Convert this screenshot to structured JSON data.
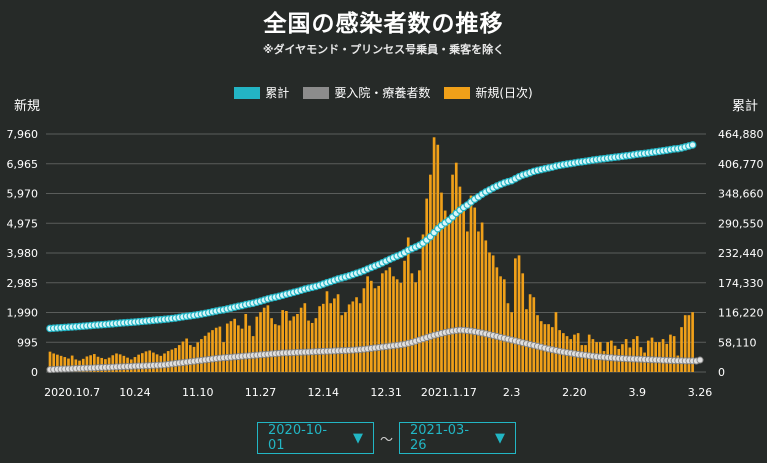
{
  "title": "全国の感染者数の推移",
  "subtitle": "※ダイヤモンド・プリンセス号乗員・乗客を除く",
  "colors": {
    "background": "#262a28",
    "cumulative": "#23b4c4",
    "hospitalized": "#8c8c8c",
    "new": "#f0a019",
    "grid": "#5a5d5b",
    "accent": "#22b6c4"
  },
  "range": {
    "start": "2020-10-01",
    "end": "2021-03-26",
    "separator": "〜",
    "arrow": "▼"
  },
  "chart_data": {
    "type": "bar",
    "title": "全国の感染者数の推移",
    "subtitle": "※ダイヤモンド・プリンセス号乗員・乗客を除く",
    "ylabel_left": "新規",
    "ylabel_right": "累計",
    "ylim_left": [
      0,
      7960
    ],
    "ylim_right": [
      0,
      464880
    ],
    "left_ticks": [
      "0",
      "995",
      "1,990",
      "2,985",
      "3,980",
      "4,975",
      "5,970",
      "6,965",
      "7,960"
    ],
    "right_ticks": [
      "0",
      "58,110",
      "116,220",
      "174,330",
      "232,440",
      "290,550",
      "348,660",
      "406,770",
      "464,880"
    ],
    "x_tick_labels": [
      "2020.10.7",
      "10.24",
      "11.10",
      "11.27",
      "12.14",
      "12.31",
      "2021.1.17",
      "2.3",
      "2.20",
      "3.9",
      "3.26"
    ],
    "x_tick_index": [
      6,
      23,
      40,
      57,
      74,
      91,
      108,
      125,
      142,
      159,
      176
    ],
    "x_count": 177,
    "legend": [
      "累計",
      "要入院・療養者数",
      "新規(日次)"
    ],
    "legend_position": "top-center",
    "series": [
      {
        "name": "新規(日次)",
        "type": "bar",
        "axis": "left",
        "values": [
          680,
          620,
          580,
          540,
          500,
          450,
          550,
          420,
          380,
          440,
          520,
          560,
          600,
          510,
          470,
          430,
          480,
          560,
          620,
          590,
          540,
          480,
          420,
          500,
          580,
          630,
          690,
          720,
          650,
          590,
          540,
          620,
          700,
          750,
          800,
          900,
          1020,
          1120,
          900,
          840,
          990,
          1100,
          1210,
          1320,
          1400,
          1480,
          1520,
          1000,
          1620,
          1700,
          1780,
          1560,
          1450,
          1940,
          1550,
          1200,
          1850,
          2000,
          2150,
          2230,
          1800,
          1600,
          1560,
          2070,
          2040,
          1720,
          1860,
          1940,
          2150,
          2300,
          1720,
          1640,
          1800,
          2200,
          2280,
          2700,
          2300,
          2460,
          2600,
          1900,
          2000,
          2260,
          2360,
          2500,
          2300,
          2800,
          3200,
          3050,
          2800,
          2880,
          3300,
          3400,
          3500,
          3200,
          3100,
          2980,
          3720,
          4500,
          3300,
          3000,
          3400,
          4600,
          5800,
          6600,
          7850,
          7600,
          6000,
          5400,
          5000,
          6600,
          7000,
          6200,
          5400,
          4700,
          5900,
          5500,
          4700,
          5000,
          4400,
          4000,
          3900,
          3500,
          3200,
          3100,
          2300,
          2000,
          3800,
          3900,
          3300,
          2100,
          2600,
          2500,
          1900,
          1700,
          1600,
          1600,
          1500,
          2000,
          1400,
          1300,
          1200,
          1100,
          1250,
          1300,
          900,
          900,
          1250,
          1100,
          1000,
          1000,
          700,
          1000,
          1050,
          880,
          770,
          930,
          1100,
          820,
          1100,
          1200,
          830,
          650,
          1050,
          1150,
          1000,
          1000,
          1100,
          940,
          1250,
          1200,
          550,
          1500,
          1900,
          1900,
          2000
        ]
      },
      {
        "name": "累計",
        "type": "line",
        "axis": "right",
        "values": [
          85000,
          85500,
          86000,
          86500,
          87000,
          87500,
          88000,
          88500,
          89000,
          89600,
          90100,
          90800,
          91400,
          92000,
          92500,
          93000,
          93600,
          94200,
          94900,
          95500,
          96100,
          96600,
          97000,
          97600,
          98200,
          98900,
          99600,
          100300,
          101000,
          101600,
          102200,
          102900,
          103600,
          104500,
          105400,
          106500,
          107700,
          108800,
          109700,
          110700,
          111900,
          113100,
          114500,
          116000,
          117500,
          119000,
          120500,
          121500,
          123200,
          124900,
          126700,
          128300,
          129700,
          131700,
          133200,
          134400,
          136300,
          138300,
          140500,
          142800,
          144600,
          146200,
          147800,
          149900,
          152000,
          153700,
          155600,
          157500,
          159700,
          162000,
          163700,
          165400,
          167200,
          169400,
          171700,
          174400,
          176700,
          179200,
          181800,
          183700,
          185700,
          188000,
          190400,
          192900,
          195200,
          198000,
          201200,
          204300,
          207100,
          210000,
          213300,
          216700,
          220200,
          223400,
          226500,
          229500,
          233200,
          237700,
          241000,
          244000,
          247400,
          252000,
          257800,
          264400,
          272300,
          279900,
          285900,
          291300,
          296300,
          302900,
          309900,
          316100,
          321500,
          326200,
          332100,
          337600,
          342300,
          347300,
          351700,
          355700,
          359600,
          363100,
          366300,
          369400,
          371700,
          373700,
          377500,
          381400,
          384700,
          386800,
          389400,
          391900,
          393800,
          395500,
          397100,
          398700,
          400200,
          402200,
          403600,
          404900,
          406100,
          407200,
          408400,
          409700,
          410600,
          411500,
          412800,
          413900,
          414900,
          415900,
          416600,
          417600,
          418600,
          419500,
          420300,
          421200,
          422300,
          423100,
          424200,
          425400,
          426200,
          426900,
          427900,
          429100,
          430100,
          431100,
          432200,
          433200,
          434500,
          435700,
          436200,
          437700,
          439600,
          441500,
          443500
        ]
      },
      {
        "name": "要入院・療養者数",
        "type": "line",
        "axis": "left",
        "values": [
          80,
          85,
          90,
          95,
          100,
          105,
          110,
          115,
          120,
          125,
          130,
          135,
          140,
          145,
          150,
          155,
          160,
          165,
          170,
          175,
          180,
          185,
          190,
          195,
          200,
          205,
          210,
          215,
          220,
          225,
          230,
          240,
          255,
          270,
          285,
          300,
          315,
          330,
          345,
          360,
          375,
          390,
          405,
          420,
          435,
          450,
          465,
          475,
          485,
          495,
          505,
          515,
          525,
          535,
          545,
          555,
          565,
          575,
          585,
          595,
          605,
          615,
          625,
          635,
          640,
          645,
          650,
          655,
          660,
          665,
          670,
          675,
          680,
          685,
          690,
          695,
          700,
          705,
          710,
          715,
          720,
          725,
          730,
          740,
          750,
          760,
          775,
          790,
          805,
          820,
          835,
          850,
          865,
          880,
          895,
          910,
          930,
          960,
          990,
          1030,
          1070,
          1110,
          1150,
          1190,
          1230,
          1260,
          1290,
          1320,
          1345,
          1370,
          1390,
          1400,
          1395,
          1385,
          1370,
          1350,
          1330,
          1305,
          1280,
          1250,
          1220,
          1190,
          1160,
          1130,
          1100,
          1070,
          1040,
          1010,
          980,
          950,
          920,
          890,
          860,
          830,
          800,
          770,
          745,
          720,
          695,
          670,
          650,
          630,
          610,
          590,
          575,
          560,
          545,
          530,
          515,
          505,
          495,
          485,
          475,
          465,
          455,
          450,
          445,
          440,
          435,
          430,
          425,
          420,
          415,
          410,
          405,
          400,
          395,
          390,
          385,
          380,
          378,
          376,
          374,
          372,
          370,
          368,
          400
        ]
      }
    ]
  }
}
